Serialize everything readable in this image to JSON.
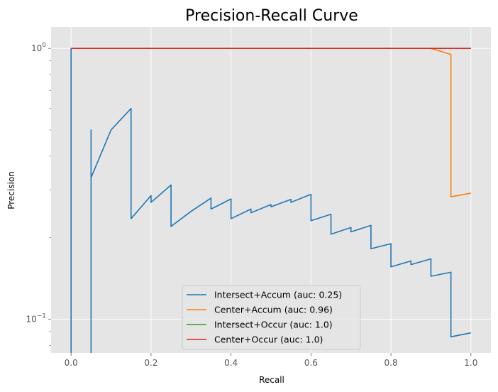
{
  "chart_data": {
    "type": "line",
    "title": "Precision-Recall Curve",
    "xlabel": "Recall",
    "ylabel": "Precision",
    "xlim": [
      -0.05,
      1.05
    ],
    "ylim": [
      0.075,
      1.2
    ],
    "yscale": "log",
    "grid": true,
    "legend_position": "lower-center",
    "x_ticks": [
      {
        "value": 0.0,
        "label": "0.0"
      },
      {
        "value": 0.2,
        "label": "0.2"
      },
      {
        "value": 0.4,
        "label": "0.4"
      },
      {
        "value": 0.6,
        "label": "0.6"
      },
      {
        "value": 0.8,
        "label": "0.8"
      },
      {
        "value": 1.0,
        "label": "1.0"
      }
    ],
    "y_major_ticks": [
      {
        "value": 0.1,
        "base": "10",
        "exp": "−1"
      },
      {
        "value": 1.0,
        "base": "10",
        "exp": "0"
      }
    ],
    "y_minor_ticks": [
      0.08,
      0.09,
      0.2,
      0.3,
      0.4,
      0.5,
      0.6,
      0.7,
      0.8,
      0.9
    ],
    "series": [
      {
        "name": "Intersect+Accum (auc: 0.25)",
        "color": "#1f77b4",
        "x": [
          0.0,
          0.0,
          0.0,
          0.05,
          0.05,
          0.05,
          0.1,
          0.15,
          0.15,
          0.2,
          0.2,
          0.25,
          0.25,
          0.3,
          0.35,
          0.35,
          0.4,
          0.4,
          0.45,
          0.45,
          0.5,
          0.5,
          0.55,
          0.55,
          0.6,
          0.6,
          0.65,
          0.65,
          0.7,
          0.7,
          0.75,
          0.75,
          0.8,
          0.8,
          0.85,
          0.85,
          0.9,
          0.9,
          0.95,
          0.95,
          1.0
        ],
        "y": [
          0.05,
          1.0,
          0.05,
          0.05,
          0.5,
          0.333,
          0.5,
          0.6,
          0.235,
          0.286,
          0.27,
          0.313,
          0.22,
          0.25,
          0.28,
          0.255,
          0.278,
          0.235,
          0.255,
          0.247,
          0.265,
          0.26,
          0.277,
          0.27,
          0.289,
          0.231,
          0.244,
          0.206,
          0.218,
          0.21,
          0.222,
          0.182,
          0.19,
          0.156,
          0.164,
          0.159,
          0.167,
          0.144,
          0.149,
          0.086,
          0.089
        ]
      },
      {
        "name": "Center+Accum (auc: 0.96)",
        "color": "#ff7f0e",
        "x": [
          0.0,
          0.9,
          0.95,
          0.95,
          1.0
        ],
        "y": [
          1.0,
          1.0,
          0.95,
          0.283,
          0.292
        ]
      },
      {
        "name": "Intersect+Occur (auc: 1.0)",
        "color": "#2ca02c",
        "x": [
          0.0,
          1.0
        ],
        "y": [
          1.0,
          1.0
        ]
      },
      {
        "name": "Center+Occur (auc: 1.0)",
        "color": "#d62728",
        "x": [
          0.0,
          1.0
        ],
        "y": [
          1.0,
          1.0
        ]
      }
    ]
  }
}
